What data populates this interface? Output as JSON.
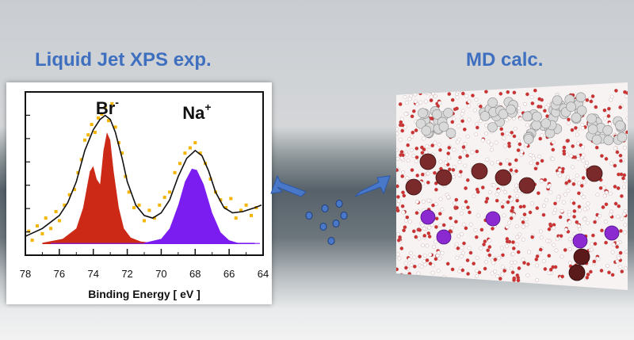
{
  "left_heading": "Liquid Jet XPS exp.",
  "right_heading": "MD calc.",
  "colors": {
    "heading": "#3f6fbf",
    "br_peak": "#cc2a16",
    "na_peak": "#7b1cf0",
    "fit_line": "#111111",
    "data_points": "#f4b400",
    "arrow": "#4a78c8"
  },
  "chart_data": {
    "type": "scatter",
    "xlabel": "Binding Energy [ eV ]",
    "xlim": [
      78,
      64
    ],
    "x_reversed": true,
    "x_ticks": [
      78,
      76,
      74,
      72,
      70,
      68,
      66,
      64
    ],
    "y_ticks_labeled": false,
    "annotations": [
      {
        "text": "Br",
        "sup": "-",
        "x": 73.2
      },
      {
        "text": "Na",
        "sup": "+",
        "x": 68.0
      }
    ],
    "series": [
      {
        "kind": "filled_peak",
        "x": [
          77,
          75.8,
          75,
          74.6,
          74.2,
          74.0,
          73.8,
          73.6,
          73.4,
          73.2,
          73.0,
          72.8,
          72.5,
          72.2,
          71.8,
          71.2,
          70.5,
          70
        ],
        "y": [
          0.01,
          0.04,
          0.12,
          0.28,
          0.56,
          0.6,
          0.5,
          0.46,
          0.72,
          0.86,
          0.8,
          0.56,
          0.28,
          0.12,
          0.05,
          0.02,
          0.01,
          0.01
        ]
      },
      {
        "kind": "filled_peak",
        "x": [
          71,
          70,
          69.5,
          69.0,
          68.6,
          68.2,
          67.9,
          67.5,
          67.0,
          66.5,
          66.0,
          65.5,
          64.5
        ],
        "y": [
          0.01,
          0.04,
          0.12,
          0.3,
          0.48,
          0.58,
          0.57,
          0.46,
          0.24,
          0.09,
          0.03,
          0.01,
          0.01
        ]
      },
      {
        "kind": "fit_line",
        "x": [
          78,
          77,
          76,
          75.5,
          75,
          74.5,
          74,
          73.6,
          73.3,
          73.0,
          72.7,
          72.3,
          72.0,
          71.5,
          71,
          70.5,
          70,
          69.5,
          69,
          68.5,
          68.0,
          67.6,
          67.2,
          66.8,
          66.3,
          65.8,
          65.2,
          64.5,
          64.1
        ],
        "y": [
          0.06,
          0.12,
          0.22,
          0.32,
          0.48,
          0.72,
          0.88,
          0.96,
          0.99,
          0.96,
          0.86,
          0.66,
          0.48,
          0.3,
          0.22,
          0.2,
          0.24,
          0.34,
          0.52,
          0.66,
          0.72,
          0.68,
          0.56,
          0.4,
          0.28,
          0.24,
          0.25,
          0.28,
          0.3
        ]
      },
      {
        "kind": "data_points",
        "x": [
          77.8,
          77.6,
          77.3,
          77.0,
          76.8,
          76.5,
          76.2,
          76.0,
          75.7,
          75.4,
          75.1,
          74.9,
          74.7,
          74.5,
          74.3,
          74.1,
          73.9,
          73.7,
          73.5,
          73.3,
          73.1,
          72.9,
          72.7,
          72.5,
          72.3,
          72.1,
          71.9,
          71.6,
          71.3,
          71.0,
          70.7,
          70.4,
          70.1,
          69.8,
          69.5,
          69.2,
          68.9,
          68.6,
          68.3,
          68.0,
          67.7,
          67.4,
          67.1,
          66.8,
          66.5,
          66.2,
          65.9,
          65.6,
          65.3,
          65.0,
          64.7,
          64.4
        ],
        "y": [
          0.1,
          0.03,
          0.14,
          0.08,
          0.2,
          0.12,
          0.25,
          0.18,
          0.3,
          0.38,
          0.42,
          0.55,
          0.65,
          0.8,
          0.84,
          0.92,
          0.86,
          0.97,
          1.0,
          1.05,
          0.95,
          1.08,
          0.9,
          0.78,
          0.7,
          0.52,
          0.4,
          0.28,
          0.3,
          0.18,
          0.26,
          0.2,
          0.3,
          0.36,
          0.4,
          0.55,
          0.62,
          0.7,
          0.74,
          0.78,
          0.7,
          0.62,
          0.5,
          0.4,
          0.34,
          0.28,
          0.35,
          0.2,
          0.26,
          0.3,
          0.22,
          0.28
        ]
      }
    ]
  }
}
